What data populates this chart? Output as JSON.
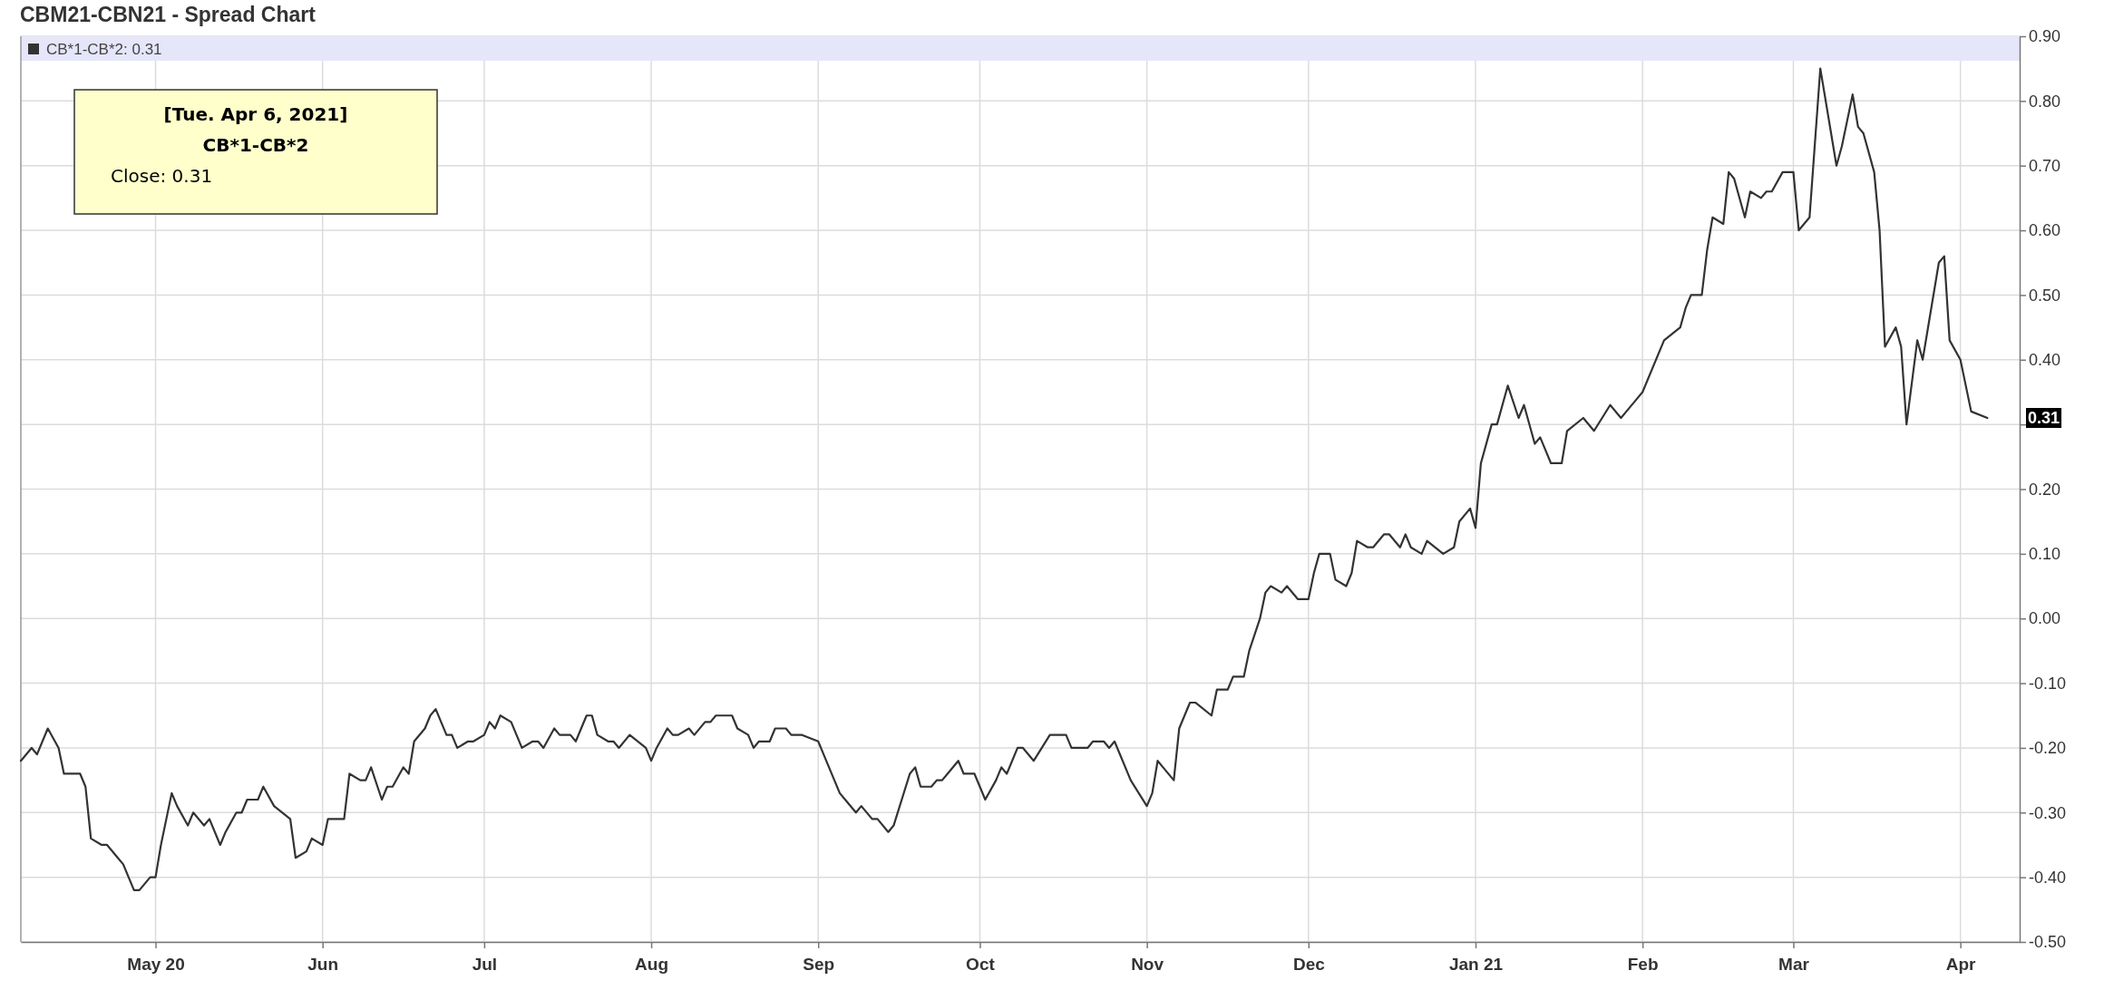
{
  "chart_data": {
    "type": "line",
    "title": "CBM21-CBN21 - Spread Chart",
    "x": [
      "2020-04-06",
      "2020-04-08",
      "2020-04-09",
      "2020-04-11",
      "2020-04-13",
      "2020-04-14",
      "2020-04-17",
      "2020-04-18",
      "2020-04-19",
      "2020-04-21",
      "2020-04-22",
      "2020-04-24",
      "2020-04-25",
      "2020-04-27",
      "2020-04-28",
      "2020-04-30",
      "2020-05-01",
      "2020-05-02",
      "2020-05-04",
      "2020-05-05",
      "2020-05-07",
      "2020-05-08",
      "2020-05-10",
      "2020-05-11",
      "2020-05-13",
      "2020-05-14",
      "2020-05-16",
      "2020-05-17",
      "2020-05-18",
      "2020-05-20",
      "2020-05-21",
      "2020-05-23",
      "2020-05-26",
      "2020-05-27",
      "2020-05-29",
      "2020-05-30",
      "2020-06-01",
      "2020-06-02",
      "2020-06-05",
      "2020-06-06",
      "2020-06-08",
      "2020-06-09",
      "2020-06-10",
      "2020-06-12",
      "2020-06-13",
      "2020-06-14",
      "2020-06-16",
      "2020-06-17",
      "2020-06-18",
      "2020-06-20",
      "2020-06-21",
      "2020-06-22",
      "2020-06-24",
      "2020-06-25",
      "2020-06-26",
      "2020-06-28",
      "2020-06-29",
      "2020-07-01",
      "2020-07-02",
      "2020-07-03",
      "2020-07-04",
      "2020-07-06",
      "2020-07-07",
      "2020-07-08",
      "2020-07-10",
      "2020-07-11",
      "2020-07-12",
      "2020-07-14",
      "2020-07-15",
      "2020-07-17",
      "2020-07-18",
      "2020-07-20",
      "2020-07-21",
      "2020-07-22",
      "2020-07-24",
      "2020-07-25",
      "2020-07-26",
      "2020-07-28",
      "2020-07-31",
      "2020-08-01",
      "2020-08-02",
      "2020-08-04",
      "2020-08-05",
      "2020-08-06",
      "2020-08-08",
      "2020-08-09",
      "2020-08-11",
      "2020-08-12",
      "2020-08-13",
      "2020-08-16",
      "2020-08-17",
      "2020-08-19",
      "2020-08-20",
      "2020-08-21",
      "2020-08-23",
      "2020-08-24",
      "2020-08-26",
      "2020-08-27",
      "2020-08-29",
      "2020-09-01",
      "2020-09-02",
      "2020-09-05",
      "2020-09-06",
      "2020-09-08",
      "2020-09-09",
      "2020-09-11",
      "2020-09-12",
      "2020-09-14",
      "2020-09-15",
      "2020-09-18",
      "2020-09-19",
      "2020-09-20",
      "2020-09-22",
      "2020-09-23",
      "2020-09-24",
      "2020-09-25",
      "2020-09-27",
      "2020-09-28",
      "2020-09-30",
      "2020-10-02",
      "2020-10-04",
      "2020-10-05",
      "2020-10-06",
      "2020-10-08",
      "2020-10-09",
      "2020-10-11",
      "2020-10-14",
      "2020-10-17",
      "2020-10-18",
      "2020-10-21",
      "2020-10-22",
      "2020-10-24",
      "2020-10-25",
      "2020-10-26",
      "2020-10-29",
      "2020-11-01",
      "2020-11-02",
      "2020-11-03",
      "2020-11-04",
      "2020-11-06",
      "2020-11-07",
      "2020-11-09",
      "2020-11-10",
      "2020-11-13",
      "2020-11-14",
      "2020-11-16",
      "2020-11-17",
      "2020-11-19",
      "2020-11-20",
      "2020-11-22",
      "2020-11-23",
      "2020-11-24",
      "2020-11-26",
      "2020-11-27",
      "2020-11-29",
      "2020-12-01",
      "2020-12-02",
      "2020-12-03",
      "2020-12-05",
      "2020-12-06",
      "2020-12-08",
      "2020-12-09",
      "2020-12-10",
      "2020-12-12",
      "2020-12-13",
      "2020-12-15",
      "2020-12-16",
      "2020-12-18",
      "2020-12-19",
      "2020-12-20",
      "2020-12-22",
      "2020-12-23",
      "2020-12-26",
      "2020-12-28",
      "2020-12-29",
      "2020-12-31",
      "2021-01-01",
      "2021-01-02",
      "2021-01-04",
      "2021-01-05",
      "2021-01-07",
      "2021-01-09",
      "2021-01-10",
      "2021-01-12",
      "2021-01-13",
      "2021-01-15",
      "2021-01-17",
      "2021-01-18",
      "2021-01-21",
      "2021-01-23",
      "2021-01-26",
      "2021-01-28",
      "2021-01-29",
      "2021-01-31",
      "2021-02-01",
      "2021-02-04",
      "2021-02-05",
      "2021-02-08",
      "2021-02-09",
      "2021-02-10",
      "2021-02-12",
      "2021-02-13",
      "2021-02-14",
      "2021-02-16",
      "2021-02-17",
      "2021-02-18",
      "2021-02-20",
      "2021-02-21",
      "2021-02-23",
      "2021-02-24",
      "2021-02-25",
      "2021-02-27",
      "2021-03-01",
      "2021-03-02",
      "2021-03-04",
      "2021-03-06",
      "2021-03-09",
      "2021-03-10",
      "2021-03-12",
      "2021-03-13",
      "2021-03-14",
      "2021-03-16",
      "2021-03-17",
      "2021-03-18",
      "2021-03-20",
      "2021-03-21",
      "2021-03-22",
      "2021-03-24",
      "2021-03-25",
      "2021-03-28",
      "2021-03-29",
      "2021-03-30",
      "2021-04-01",
      "2021-04-03",
      "2021-04-06"
    ],
    "series": [
      {
        "name": "CB*1-CB*2: 0.31",
        "color": "#333333",
        "values": [
          -0.22,
          -0.2,
          -0.21,
          -0.17,
          -0.2,
          -0.24,
          -0.24,
          -0.26,
          -0.34,
          -0.35,
          -0.35,
          -0.37,
          -0.38,
          -0.42,
          -0.42,
          -0.4,
          -0.4,
          -0.35,
          -0.27,
          -0.29,
          -0.32,
          -0.3,
          -0.32,
          -0.31,
          -0.35,
          -0.33,
          -0.3,
          -0.3,
          -0.28,
          -0.28,
          -0.26,
          -0.29,
          -0.31,
          -0.37,
          -0.36,
          -0.34,
          -0.35,
          -0.31,
          -0.31,
          -0.24,
          -0.25,
          -0.25,
          -0.23,
          -0.28,
          -0.26,
          -0.26,
          -0.23,
          -0.24,
          -0.19,
          -0.17,
          -0.15,
          -0.14,
          -0.18,
          -0.18,
          -0.2,
          -0.19,
          -0.19,
          -0.18,
          -0.16,
          -0.17,
          -0.15,
          -0.16,
          -0.18,
          -0.2,
          -0.19,
          -0.19,
          -0.2,
          -0.17,
          -0.18,
          -0.18,
          -0.19,
          -0.15,
          -0.15,
          -0.18,
          -0.19,
          -0.19,
          -0.2,
          -0.18,
          -0.2,
          -0.22,
          -0.2,
          -0.17,
          -0.18,
          -0.18,
          -0.17,
          -0.18,
          -0.16,
          -0.16,
          -0.15,
          -0.15,
          -0.17,
          -0.18,
          -0.2,
          -0.19,
          -0.19,
          -0.17,
          -0.17,
          -0.18,
          -0.18,
          -0.19,
          -0.21,
          -0.27,
          -0.28,
          -0.3,
          -0.29,
          -0.31,
          -0.31,
          -0.33,
          -0.32,
          -0.24,
          -0.23,
          -0.26,
          -0.26,
          -0.25,
          -0.25,
          -0.24,
          -0.22,
          -0.24,
          -0.24,
          -0.28,
          -0.25,
          -0.23,
          -0.24,
          -0.2,
          -0.2,
          -0.22,
          -0.18,
          -0.18,
          -0.2,
          -0.2,
          -0.19,
          -0.19,
          -0.2,
          -0.19,
          -0.25,
          -0.29,
          -0.27,
          -0.22,
          -0.23,
          -0.25,
          -0.17,
          -0.13,
          -0.13,
          -0.15,
          -0.11,
          -0.11,
          -0.09,
          -0.09,
          -0.05,
          0.0,
          0.04,
          0.05,
          0.04,
          0.05,
          0.03,
          0.03,
          0.07,
          0.1,
          0.1,
          0.06,
          0.05,
          0.07,
          0.12,
          0.11,
          0.11,
          0.13,
          0.13,
          0.11,
          0.13,
          0.11,
          0.1,
          0.12,
          0.1,
          0.11,
          0.15,
          0.17,
          0.14,
          0.24,
          0.3,
          0.3,
          0.36,
          0.31,
          0.33,
          0.27,
          0.28,
          0.24,
          0.24,
          0.29,
          0.31,
          0.29,
          0.33,
          0.31,
          0.32,
          0.34,
          0.35,
          0.41,
          0.43,
          0.45,
          0.48,
          0.5,
          0.5,
          0.57,
          0.62,
          0.61,
          0.69,
          0.68,
          0.62,
          0.66,
          0.65,
          0.66,
          0.66,
          0.69,
          0.69,
          0.6,
          0.62,
          0.85,
          0.7,
          0.73,
          0.81,
          0.76,
          0.75,
          0.69,
          0.6,
          0.42,
          0.45,
          0.42,
          0.3,
          0.43,
          0.4,
          0.55,
          0.56,
          0.43,
          0.4,
          0.32,
          0.31
        ]
      }
    ],
    "xlim": [
      "2020-04-06",
      "2021-04-12"
    ],
    "xticks": [
      {
        "value": "2020-05-01",
        "label": "May 20"
      },
      {
        "value": "2020-06-01",
        "label": "Jun"
      },
      {
        "value": "2020-07-01",
        "label": "Jul"
      },
      {
        "value": "2020-08-01",
        "label": "Aug"
      },
      {
        "value": "2020-09-01",
        "label": "Sep"
      },
      {
        "value": "2020-10-01",
        "label": "Oct"
      },
      {
        "value": "2020-11-01",
        "label": "Nov"
      },
      {
        "value": "2020-12-01",
        "label": "Dec"
      },
      {
        "value": "2021-01-01",
        "label": "Jan 21"
      },
      {
        "value": "2021-02-01",
        "label": "Feb"
      },
      {
        "value": "2021-03-01",
        "label": "Mar"
      },
      {
        "value": "2021-04-01",
        "label": "Apr"
      }
    ],
    "ylim": [
      -0.5,
      0.9
    ],
    "yticks": [
      {
        "value": -0.5,
        "label": "-0.50"
      },
      {
        "value": -0.4,
        "label": "-0.40"
      },
      {
        "value": -0.3,
        "label": "-0.30"
      },
      {
        "value": -0.2,
        "label": "-0.20"
      },
      {
        "value": -0.1,
        "label": "-0.10"
      },
      {
        "value": 0,
        "label": "0.00"
      },
      {
        "value": 0.1,
        "label": "0.10"
      },
      {
        "value": 0.2,
        "label": "0.20"
      },
      {
        "value": 0.3,
        "label": null
      },
      {
        "value": 0.4,
        "label": "0.40"
      },
      {
        "value": 0.5,
        "label": "0.50"
      },
      {
        "value": 0.6,
        "label": "0.60"
      },
      {
        "value": 0.7,
        "label": "0.70"
      },
      {
        "value": 0.8,
        "label": "0.80"
      },
      {
        "value": 0.9,
        "label": "0.90"
      }
    ],
    "grid": true,
    "legend": "top left",
    "marker": "none",
    "line_style": "solid",
    "annotations": [
      "[Tue. Apr 6, 2021]",
      "CB*1-CB*2",
      "Close: 0.31",
      "0.31"
    ]
  }
}
